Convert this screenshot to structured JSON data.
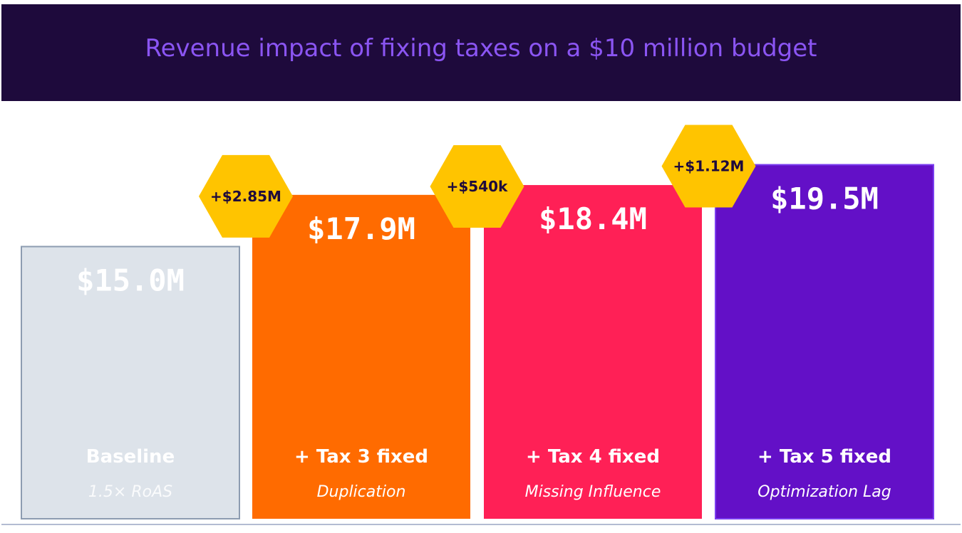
{
  "chart_data": {
    "type": "bar",
    "title": "Revenue impact of fixing taxes on a $10 million budget",
    "xlabel": "",
    "ylabel": "",
    "ylim": [
      0,
      20
    ],
    "grid": false,
    "categories": [
      "Baseline",
      "+ Tax 3 fixed",
      "+ Tax 4 fixed",
      "+ Tax 5 fixed"
    ],
    "subtitles": [
      "1.5× RoAS",
      "Duplication",
      "Missing Influence",
      "Optimization Lag"
    ],
    "values": [
      15.0,
      17.85,
      18.39,
      19.51
    ],
    "value_labels": [
      "$15.0M",
      "$17.9M",
      "$18.4M",
      "$19.5M"
    ],
    "increments": [
      "+$2.85M",
      "+$540k",
      "+$1.12M"
    ],
    "colors": [
      "#dde3ea",
      "#ff6b00",
      "#ff2056",
      "#6310c7"
    ],
    "badge_color": "#ffc400"
  }
}
